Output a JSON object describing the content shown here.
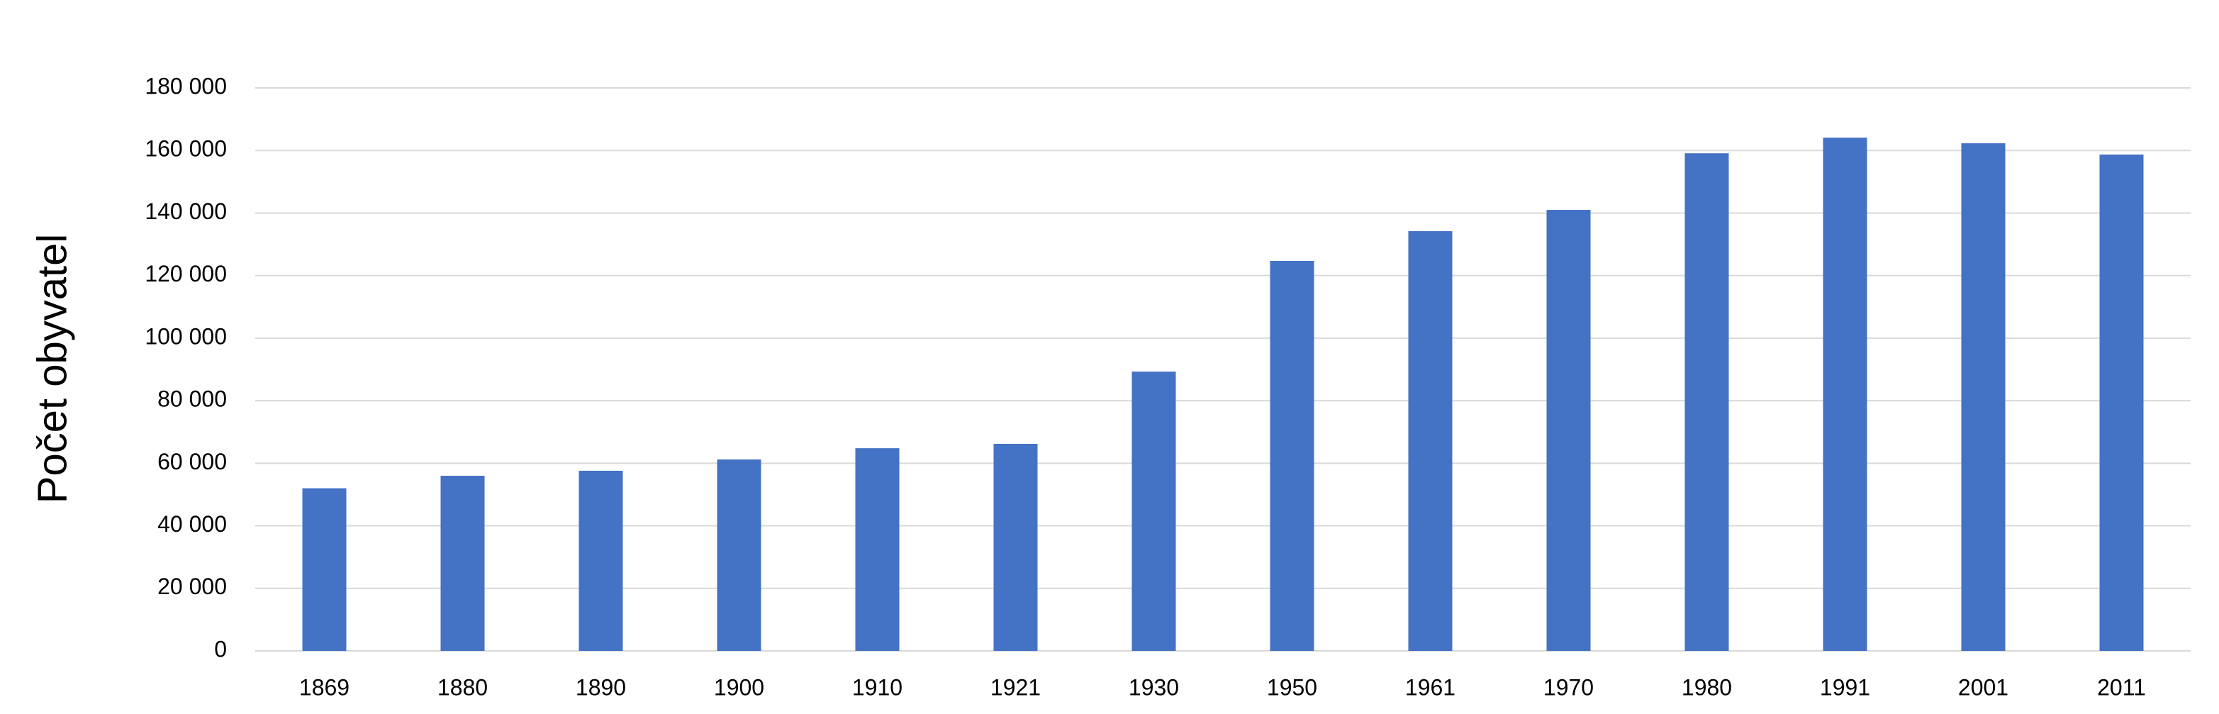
{
  "chart_data": {
    "type": "bar",
    "y_label": "Počet obyvatel",
    "categories": [
      "1869",
      "1880",
      "1890",
      "1900",
      "1910",
      "1921",
      "1930",
      "1950",
      "1961",
      "1970",
      "1980",
      "1991",
      "2001",
      "2011"
    ],
    "values": [
      52000,
      56000,
      57600,
      61200,
      64800,
      66200,
      89300,
      124700,
      134200,
      141000,
      159100,
      164100,
      162300,
      158700
    ],
    "color": "#4472c4",
    "ylim": [
      0,
      180000
    ],
    "yticks": [
      0,
      {
        "value": 20000,
        "label": "20 000"
      },
      {
        "value": 40000,
        "label": "40 000"
      },
      {
        "value": 60000,
        "label": "60 000"
      },
      {
        "value": 80000,
        "label": "80 000"
      },
      {
        "value": 100000,
        "label": "100 000"
      },
      {
        "value": 120000,
        "label": "120 000"
      },
      {
        "value": 140000,
        "label": "140 000"
      },
      {
        "value": 160000,
        "label": "160 000"
      },
      {
        "value": 180000,
        "label": "180 000"
      }
    ],
    "grid": true
  }
}
